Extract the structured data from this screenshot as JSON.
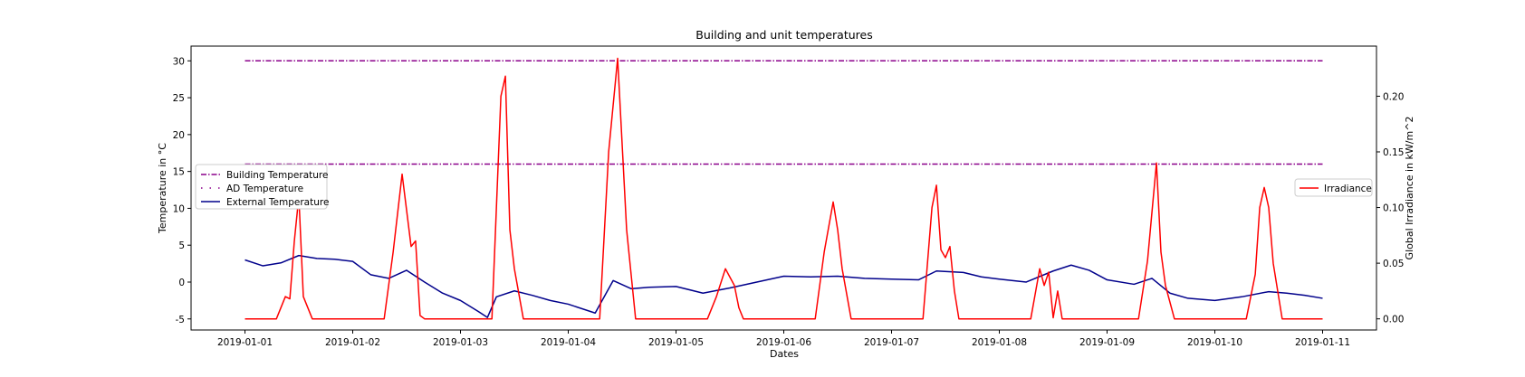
{
  "chart_data": {
    "type": "line",
    "title": "Building and unit temperatures",
    "xlabel": "Dates",
    "ylabel_left": "Temperature in °C",
    "ylabel_right": "Global Irradiance in kW/m^2",
    "x_range": [
      "2019-01-01",
      "2019-01-11"
    ],
    "x_ticks": [
      "2019-01-01",
      "2019-01-02",
      "2019-01-03",
      "2019-01-04",
      "2019-01-05",
      "2019-01-06",
      "2019-01-07",
      "2019-01-08",
      "2019-01-09",
      "2019-01-10",
      "2019-01-11"
    ],
    "ylim_left": [
      -6.5,
      32
    ],
    "yticks_left": [
      "-5",
      "0",
      "5",
      "10",
      "15",
      "20",
      "25",
      "30"
    ],
    "ylim_right": [
      -0.01,
      0.245
    ],
    "yticks_right": [
      "0.00",
      "0.05",
      "0.10",
      "0.15",
      "0.20"
    ],
    "grid": false,
    "legend_left_placement": "center-left",
    "legend_right_placement": "center-right",
    "series": [
      {
        "name": "Building Temperature",
        "axis": "left",
        "color": "#8b008b",
        "style": "dashdot",
        "x": [
          "2019-01-01",
          "2019-01-11"
        ],
        "values": [
          16,
          16
        ]
      },
      {
        "name": "AD Temperature",
        "axis": "left",
        "color": "#8b008b",
        "style": "dashdot",
        "x": [
          "2019-01-01",
          "2019-01-11"
        ],
        "values": [
          30,
          30
        ]
      },
      {
        "name": "External Temperature",
        "axis": "left",
        "color": "#00008b",
        "style": "solid",
        "x": [
          "2019-01-01 00:00",
          "2019-01-01 04:00",
          "2019-01-01 08:00",
          "2019-01-01 12:00",
          "2019-01-01 16:00",
          "2019-01-01 20:00",
          "2019-01-02 00:00",
          "2019-01-02 04:00",
          "2019-01-02 08:00",
          "2019-01-02 12:00",
          "2019-01-02 16:00",
          "2019-01-02 20:00",
          "2019-01-03 00:00",
          "2019-01-03 04:00",
          "2019-01-03 06:00",
          "2019-01-03 08:00",
          "2019-01-03 12:00",
          "2019-01-03 16:00",
          "2019-01-03 20:00",
          "2019-01-04 00:00",
          "2019-01-04 06:00",
          "2019-01-04 10:00",
          "2019-01-04 14:00",
          "2019-01-04 18:00",
          "2019-01-05 00:00",
          "2019-01-05 06:00",
          "2019-01-05 12:00",
          "2019-01-05 18:00",
          "2019-01-06 00:00",
          "2019-01-06 06:00",
          "2019-01-06 12:00",
          "2019-01-06 18:00",
          "2019-01-07 00:00",
          "2019-01-07 06:00",
          "2019-01-07 10:00",
          "2019-01-07 16:00",
          "2019-01-07 20:00",
          "2019-01-08 00:00",
          "2019-01-08 06:00",
          "2019-01-08 12:00",
          "2019-01-08 16:00",
          "2019-01-08 20:00",
          "2019-01-09 00:00",
          "2019-01-09 06:00",
          "2019-01-09 10:00",
          "2019-01-09 14:00",
          "2019-01-09 18:00",
          "2019-01-10 00:00",
          "2019-01-10 06:00",
          "2019-01-10 12:00",
          "2019-01-10 16:00",
          "2019-01-10 20:00",
          "2019-01-11 00:00"
        ],
        "values": [
          3.0,
          2.2,
          2.6,
          3.6,
          3.2,
          3.1,
          2.8,
          1.0,
          0.5,
          1.6,
          0.0,
          -1.5,
          -2.5,
          -4.0,
          -4.8,
          -2.0,
          -1.2,
          -1.8,
          -2.5,
          -3.0,
          -4.2,
          0.2,
          -0.9,
          -0.7,
          -0.6,
          -1.5,
          -0.8,
          0.0,
          0.8,
          0.7,
          0.8,
          0.5,
          0.4,
          0.3,
          1.5,
          1.3,
          0.7,
          0.4,
          0.0,
          1.5,
          2.3,
          1.6,
          0.3,
          -0.3,
          0.5,
          -1.5,
          -2.2,
          -2.5,
          -2.0,
          -1.3,
          -1.5,
          -1.8,
          -2.2
        ]
      },
      {
        "name": "Irradiance",
        "axis": "right",
        "color": "#ff0000",
        "style": "solid",
        "x": [
          "2019-01-01 00:00",
          "2019-01-01 07:00",
          "2019-01-01 09:00",
          "2019-01-01 10:00",
          "2019-01-01 11:00",
          "2019-01-01 12:00",
          "2019-01-01 13:00",
          "2019-01-01 15:00",
          "2019-01-01 17:00",
          "2019-01-02 07:00",
          "2019-01-02 09:00",
          "2019-01-02 11:00",
          "2019-01-02 13:00",
          "2019-01-02 14:00",
          "2019-01-02 15:00",
          "2019-01-02 16:00",
          "2019-01-02 17:00",
          "2019-01-03 07:00",
          "2019-01-03 09:00",
          "2019-01-03 10:00",
          "2019-01-03 11:00",
          "2019-01-03 12:00",
          "2019-01-03 14:00",
          "2019-01-03 16:00",
          "2019-01-03 17:00",
          "2019-01-04 07:00",
          "2019-01-04 09:00",
          "2019-01-04 11:00",
          "2019-01-04 13:00",
          "2019-01-04 15:00",
          "2019-01-04 17:00",
          "2019-01-05 07:00",
          "2019-01-05 09:00",
          "2019-01-05 11:00",
          "2019-01-05 13:00",
          "2019-01-05 14:00",
          "2019-01-05 15:00",
          "2019-01-05 17:00",
          "2019-01-06 07:00",
          "2019-01-06 09:00",
          "2019-01-06 11:00",
          "2019-01-06 12:00",
          "2019-01-06 13:00",
          "2019-01-06 15:00",
          "2019-01-06 17:00",
          "2019-01-07 07:00",
          "2019-01-07 09:00",
          "2019-01-07 10:00",
          "2019-01-07 11:00",
          "2019-01-07 12:00",
          "2019-01-07 13:00",
          "2019-01-07 14:00",
          "2019-01-07 15:00",
          "2019-01-07 17:00",
          "2019-01-08 07:00",
          "2019-01-08 09:00",
          "2019-01-08 10:00",
          "2019-01-08 11:00",
          "2019-01-08 12:00",
          "2019-01-08 13:00",
          "2019-01-08 14:00",
          "2019-01-08 15:00",
          "2019-01-08 17:00",
          "2019-01-09 07:00",
          "2019-01-09 09:00",
          "2019-01-09 11:00",
          "2019-01-09 12:00",
          "2019-01-09 13:00",
          "2019-01-09 15:00",
          "2019-01-09 17:00",
          "2019-01-10 07:00",
          "2019-01-10 09:00",
          "2019-01-10 10:00",
          "2019-01-10 11:00",
          "2019-01-10 12:00",
          "2019-01-10 13:00",
          "2019-01-10 15:00",
          "2019-01-10 17:00",
          "2019-01-11 00:00"
        ],
        "values": [
          0.0,
          0.0,
          0.02,
          0.018,
          0.07,
          0.11,
          0.02,
          0.0,
          0.0,
          0.0,
          0.06,
          0.13,
          0.065,
          0.07,
          0.003,
          0.0,
          0.0,
          0.0,
          0.2,
          0.218,
          0.08,
          0.045,
          0.0,
          0.0,
          0.0,
          0.0,
          0.15,
          0.234,
          0.08,
          0.0,
          0.0,
          0.0,
          0.02,
          0.045,
          0.03,
          0.01,
          0.0,
          0.0,
          0.0,
          0.06,
          0.105,
          0.08,
          0.045,
          0.0,
          0.0,
          0.0,
          0.1,
          0.12,
          0.062,
          0.055,
          0.065,
          0.025,
          0.0,
          0.0,
          0.0,
          0.045,
          0.03,
          0.042,
          0.001,
          0.025,
          0.0,
          0.0,
          0.0,
          0.0,
          0.052,
          0.14,
          0.06,
          0.03,
          0.0,
          0.0,
          0.0,
          0.04,
          0.1,
          0.118,
          0.1,
          0.05,
          0.0,
          0.0,
          0.0
        ]
      }
    ]
  }
}
